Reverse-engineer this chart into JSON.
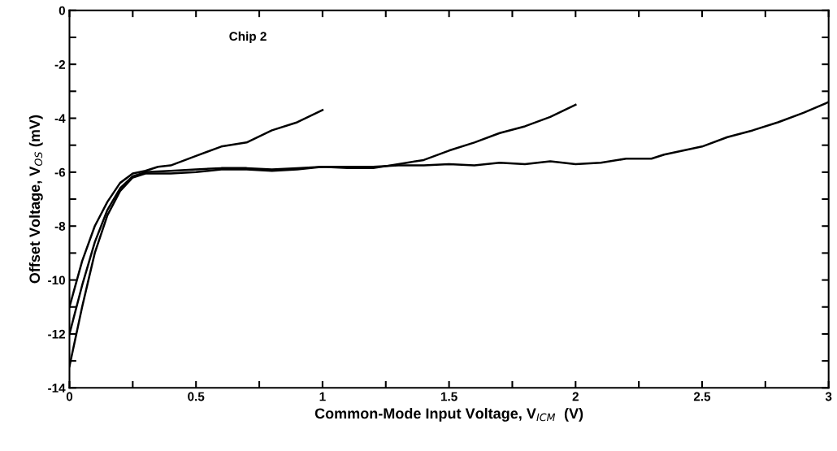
{
  "chart_data": {
    "type": "line",
    "xlabel": "Common-Mode Input Voltage, V$_{ICM}$  (V)",
    "ylabel": "Offset Voltage, V$_{OS}$ (mV)",
    "annotations": [
      "Chip 2"
    ],
    "xlim": [
      0,
      3
    ],
    "ylim": [
      -14,
      0
    ],
    "xticks": [
      0,
      {
        "value": 0.25,
        "label": null
      },
      0.5,
      {
        "value": 0.75,
        "label": null
      },
      1,
      {
        "value": 1.25,
        "label": null
      },
      1.5,
      {
        "value": 1.75,
        "label": null
      },
      2,
      {
        "value": 2.25,
        "label": null
      },
      2.5,
      {
        "value": 2.75,
        "label": null
      },
      3
    ],
    "yticks": [
      {
        "value": -14,
        "label": "-14"
      },
      {
        "value": -13,
        "label": null
      },
      {
        "value": -12,
        "label": "-12"
      },
      {
        "value": -11,
        "label": null
      },
      {
        "value": -10,
        "label": "-10"
      },
      {
        "value": -9,
        "label": null
      },
      {
        "value": -8,
        "label": "-8"
      },
      {
        "value": -7,
        "label": null
      },
      {
        "value": -6,
        "label": "-6"
      },
      {
        "value": -5,
        "label": null
      },
      {
        "value": -4,
        "label": "-4"
      },
      {
        "value": -3,
        "label": null
      },
      {
        "value": -2,
        "label": "-2"
      },
      {
        "value": -1,
        "label": null
      },
      0
    ],
    "grid": false,
    "marker": "none",
    "line_style": "solid",
    "series": [
      {
        "color": "#000000",
        "x": [
          0,
          0.05,
          0.1,
          0.15,
          0.2,
          0.25,
          0.3,
          0.35,
          0.4,
          0.5,
          0.6,
          0.7,
          0.8,
          0.9,
          1.0
        ],
        "values": [
          -11,
          -9.3,
          -8.0,
          -7.1,
          -6.4,
          -6.05,
          -5.95,
          -5.8,
          -5.75,
          -5.4,
          -5.05,
          -4.9,
          -4.45,
          -4.15,
          -3.7
        ]
      },
      {
        "color": "#000000",
        "x": [
          0,
          0.05,
          0.1,
          0.15,
          0.2,
          0.25,
          0.3,
          0.4,
          0.5,
          0.6,
          0.7,
          0.8,
          0.9,
          1.0,
          1.1,
          1.2,
          1.3,
          1.4,
          1.5,
          1.6,
          1.7,
          1.8,
          1.9,
          2.0
        ],
        "values": [
          -12,
          -10.2,
          -8.6,
          -7.4,
          -6.6,
          -6.15,
          -6.0,
          -5.95,
          -5.9,
          -5.85,
          -5.85,
          -5.9,
          -5.85,
          -5.8,
          -5.85,
          -5.85,
          -5.7,
          -5.55,
          -5.2,
          -4.9,
          -4.55,
          -4.3,
          -3.95,
          -3.5
        ]
      },
      {
        "color": "#000000",
        "x": [
          0,
          0.05,
          0.1,
          0.15,
          0.2,
          0.25,
          0.3,
          0.4,
          0.5,
          0.6,
          0.7,
          0.8,
          0.9,
          1.0,
          1.1,
          1.2,
          1.3,
          1.4,
          1.5,
          1.6,
          1.7,
          1.8,
          1.9,
          2.0,
          2.1,
          2.2,
          2.3,
          2.35,
          2.5,
          2.6,
          2.7,
          2.8,
          2.9,
          3.0
        ],
        "values": [
          -13.2,
          -11.0,
          -9.0,
          -7.6,
          -6.7,
          -6.2,
          -6.05,
          -6.05,
          -6.0,
          -5.9,
          -5.9,
          -5.95,
          -5.9,
          -5.8,
          -5.8,
          -5.8,
          -5.75,
          -5.75,
          -5.7,
          -5.75,
          -5.65,
          -5.7,
          -5.6,
          -5.7,
          -5.65,
          -5.5,
          -5.5,
          -5.35,
          -5.05,
          -4.7,
          -4.45,
          -4.15,
          -3.8,
          -3.4
        ]
      }
    ]
  }
}
